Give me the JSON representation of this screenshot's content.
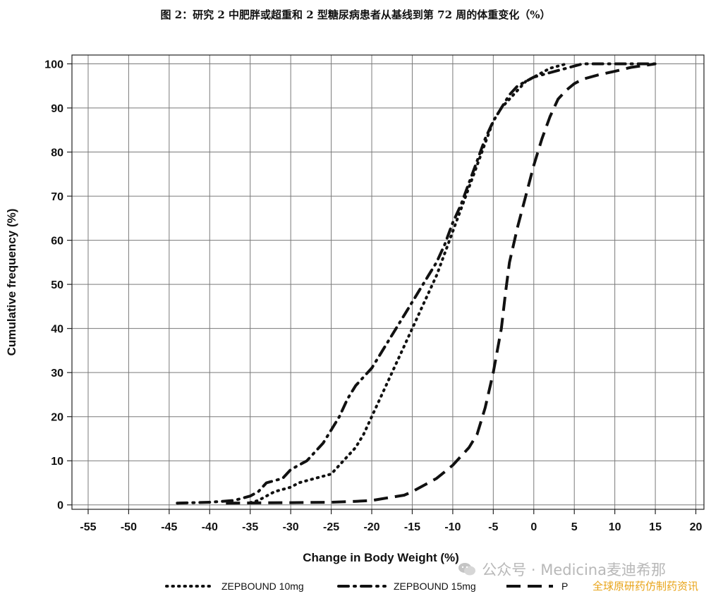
{
  "page": {
    "title": "图 2：研究 2 中肥胖或超重和 2 型糖尿病患者从基线到第 72 周的体重变化（%）"
  },
  "watermark": {
    "text": "公众号 · Medicina麦迪希那",
    "subtext": "全球原研药仿制药资讯"
  },
  "chart_data": {
    "type": "line",
    "xlabel": "Change in Body Weight (%)",
    "ylabel": "Cumulative frequency (%)",
    "xlim": [
      -57,
      21
    ],
    "ylim": [
      -1,
      102
    ],
    "x_ticks": [
      -55,
      -50,
      -45,
      -40,
      -35,
      -30,
      -25,
      -20,
      -15,
      -10,
      -5,
      0,
      5,
      10,
      15,
      20
    ],
    "y_ticks": [
      0,
      10,
      20,
      30,
      40,
      50,
      60,
      70,
      80,
      90,
      100
    ],
    "grid": true,
    "legend_position": "bottom",
    "series": [
      {
        "name": "ZEPBOUND 10mg",
        "style": "dotted",
        "points": [
          [
            -35,
            0.5
          ],
          [
            -34,
            1
          ],
          [
            -33,
            2
          ],
          [
            -32,
            3
          ],
          [
            -30,
            4
          ],
          [
            -29,
            5
          ],
          [
            -27,
            6
          ],
          [
            -25,
            7
          ],
          [
            -24,
            9
          ],
          [
            -23,
            11
          ],
          [
            -22,
            13
          ],
          [
            -21,
            16
          ],
          [
            -20,
            20
          ],
          [
            -19,
            24
          ],
          [
            -18,
            28
          ],
          [
            -17,
            32
          ],
          [
            -16,
            36
          ],
          [
            -15,
            40
          ],
          [
            -14,
            44
          ],
          [
            -13,
            48
          ],
          [
            -12,
            52
          ],
          [
            -11,
            57
          ],
          [
            -10,
            62
          ],
          [
            -9,
            67
          ],
          [
            -8,
            72
          ],
          [
            -7,
            77
          ],
          [
            -6,
            82
          ],
          [
            -5,
            87
          ],
          [
            -4,
            90
          ],
          [
            -3,
            92
          ],
          [
            -2,
            94
          ],
          [
            -1,
            96
          ],
          [
            0,
            97
          ],
          [
            1,
            98
          ],
          [
            2,
            99
          ],
          [
            4,
            100
          ]
        ]
      },
      {
        "name": "ZEPBOUND 15mg",
        "style": "dash-dot",
        "points": [
          [
            -44,
            0.4
          ],
          [
            -40,
            0.6
          ],
          [
            -37,
            1
          ],
          [
            -35,
            2
          ],
          [
            -34,
            3
          ],
          [
            -33,
            5
          ],
          [
            -31,
            6
          ],
          [
            -30,
            8
          ],
          [
            -28,
            10
          ],
          [
            -27,
            12
          ],
          [
            -26,
            14
          ],
          [
            -25,
            17
          ],
          [
            -24,
            20
          ],
          [
            -23,
            24
          ],
          [
            -22,
            27
          ],
          [
            -21,
            29
          ],
          [
            -20,
            31
          ],
          [
            -19,
            34
          ],
          [
            -18,
            37
          ],
          [
            -17,
            40
          ],
          [
            -16,
            43
          ],
          [
            -15,
            46
          ],
          [
            -14,
            49
          ],
          [
            -13,
            52
          ],
          [
            -12,
            55
          ],
          [
            -11,
            59
          ],
          [
            -10,
            64
          ],
          [
            -9,
            68
          ],
          [
            -8,
            73
          ],
          [
            -7,
            78
          ],
          [
            -6,
            83
          ],
          [
            -5,
            87
          ],
          [
            -4,
            90
          ],
          [
            -3,
            93
          ],
          [
            -2,
            95
          ],
          [
            -1,
            96
          ],
          [
            0,
            97
          ],
          [
            2,
            98
          ],
          [
            4,
            99
          ],
          [
            6,
            100
          ],
          [
            15,
            100
          ]
        ]
      },
      {
        "name": "P",
        "style": "long-dash",
        "points": [
          [
            -38,
            0.4
          ],
          [
            -30,
            0.5
          ],
          [
            -25,
            0.6
          ],
          [
            -22,
            0.8
          ],
          [
            -20,
            1
          ],
          [
            -18,
            1.6
          ],
          [
            -16,
            2.2
          ],
          [
            -15,
            3
          ],
          [
            -14,
            4
          ],
          [
            -13,
            5
          ],
          [
            -12,
            6
          ],
          [
            -11,
            7.5
          ],
          [
            -10,
            9
          ],
          [
            -9,
            11
          ],
          [
            -8,
            13
          ],
          [
            -7,
            16
          ],
          [
            -6,
            22
          ],
          [
            -5,
            30
          ],
          [
            -4,
            40
          ],
          [
            -3.5,
            48
          ],
          [
            -3,
            55
          ],
          [
            -2,
            63
          ],
          [
            -1,
            70
          ],
          [
            0,
            77
          ],
          [
            1,
            83
          ],
          [
            2,
            88
          ],
          [
            3,
            92
          ],
          [
            4,
            94
          ],
          [
            5,
            95.5
          ],
          [
            6,
            96.5
          ],
          [
            8,
            97.5
          ],
          [
            10,
            98.3
          ],
          [
            12,
            99.2
          ],
          [
            15,
            100
          ]
        ]
      }
    ]
  }
}
